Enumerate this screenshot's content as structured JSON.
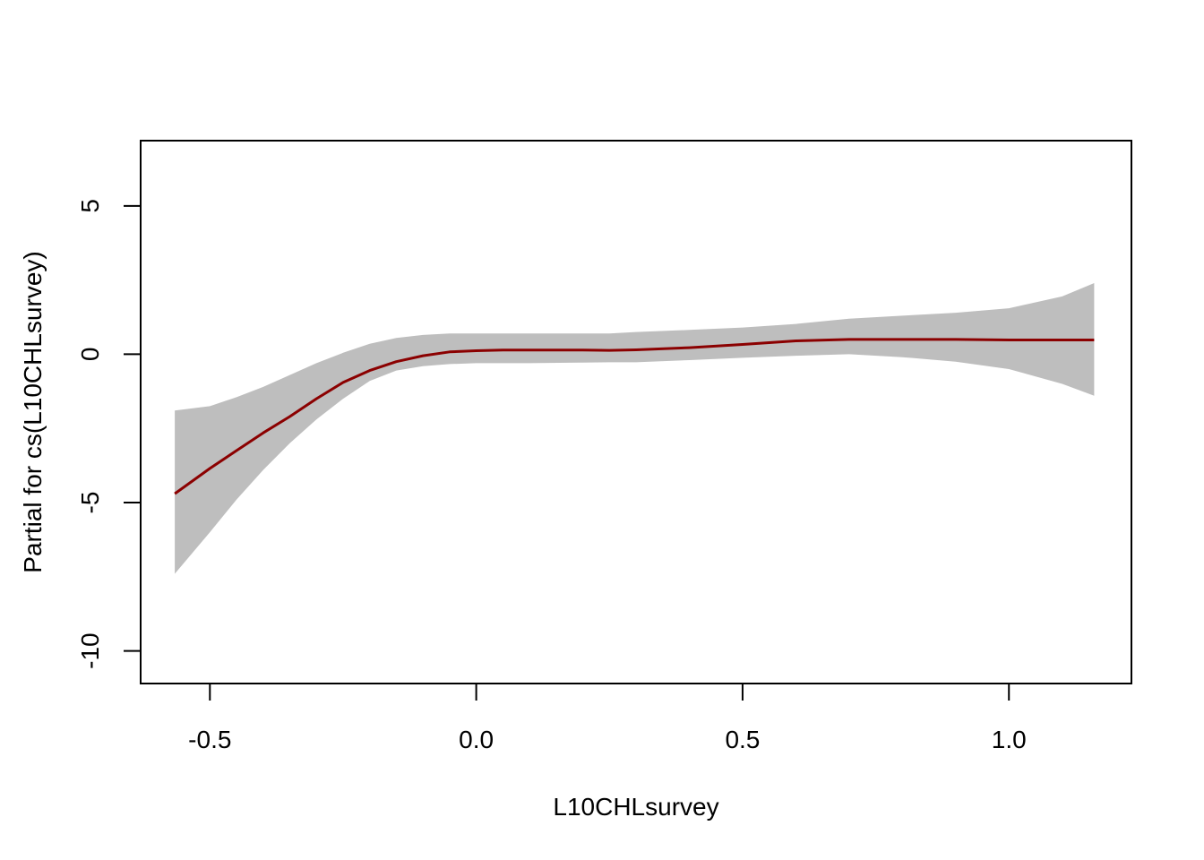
{
  "chart_data": {
    "type": "line",
    "title": "",
    "xlabel": "L10CHLsurvey",
    "ylabel": "Partial for cs(L10CHLsurvey)",
    "xlim": [
      -0.63,
      1.23
    ],
    "ylim": [
      -11.1,
      7.2
    ],
    "x_ticks": [
      -0.5,
      0.0,
      0.5,
      1.0
    ],
    "x_tick_labels": [
      "-0.5",
      "0.0",
      "0.5",
      "1.0"
    ],
    "y_ticks": [
      -10,
      -5,
      0,
      5
    ],
    "y_tick_labels": [
      "-10",
      "-5",
      "0",
      "5"
    ],
    "grid": false,
    "legend": "none",
    "colors": {
      "fit": "#8B0000",
      "band": "#BEBEBE",
      "axis": "#000000"
    },
    "series": [
      {
        "x": [
          -0.566,
          -0.5,
          -0.45,
          -0.4,
          -0.35,
          -0.3,
          -0.25,
          -0.2,
          -0.15,
          -0.1,
          -0.05,
          0.0,
          0.05,
          0.1,
          0.2,
          0.25,
          0.3,
          0.4,
          0.5,
          0.6,
          0.7,
          0.8,
          0.9,
          1.0,
          1.1,
          1.16
        ],
        "fit": [
          -4.7,
          -3.85,
          -3.25,
          -2.65,
          -2.1,
          -1.5,
          -0.95,
          -0.55,
          -0.25,
          -0.05,
          0.08,
          0.12,
          0.14,
          0.14,
          0.14,
          0.13,
          0.15,
          0.22,
          0.33,
          0.45,
          0.5,
          0.5,
          0.5,
          0.48,
          0.48,
          0.48
        ],
        "lower": [
          -7.4,
          -6.0,
          -4.9,
          -3.9,
          -3.0,
          -2.2,
          -1.5,
          -0.9,
          -0.55,
          -0.4,
          -0.33,
          -0.3,
          -0.3,
          -0.3,
          -0.28,
          -0.27,
          -0.27,
          -0.2,
          -0.12,
          -0.05,
          0.0,
          -0.1,
          -0.25,
          -0.5,
          -1.0,
          -1.4
        ],
        "upper": [
          -1.9,
          -1.75,
          -1.45,
          -1.1,
          -0.7,
          -0.3,
          0.05,
          0.35,
          0.55,
          0.65,
          0.7,
          0.7,
          0.7,
          0.7,
          0.7,
          0.7,
          0.75,
          0.82,
          0.9,
          1.02,
          1.2,
          1.3,
          1.4,
          1.55,
          1.95,
          2.4
        ]
      }
    ]
  }
}
